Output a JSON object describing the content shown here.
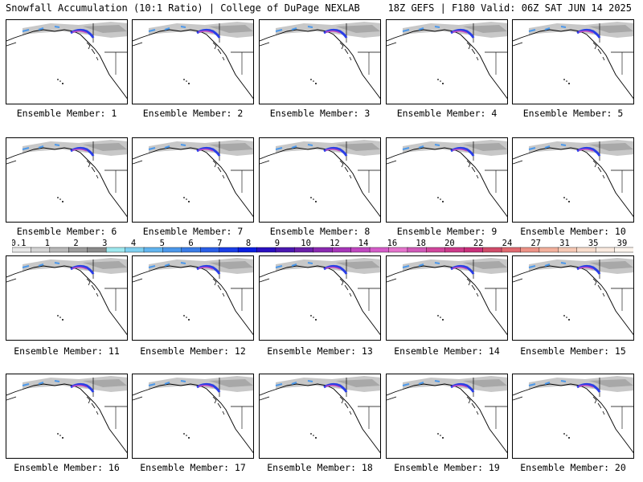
{
  "header": {
    "title_left": "Snowfall Accumulation (10:1 Ratio) | College of DuPage NEXLAB",
    "title_right": "18Z GEFS | F180 Valid: 06Z SAT JUN 14 2025"
  },
  "panels": [
    {
      "label": "Ensemble Member: 1"
    },
    {
      "label": "Ensemble Member: 2"
    },
    {
      "label": "Ensemble Member: 3"
    },
    {
      "label": "Ensemble Member: 4"
    },
    {
      "label": "Ensemble Member: 5"
    },
    {
      "label": "Ensemble Member: 6"
    },
    {
      "label": "Ensemble Member: 7"
    },
    {
      "label": "Ensemble Member: 8"
    },
    {
      "label": "Ensemble Member: 9"
    },
    {
      "label": "Ensemble Member: 10"
    },
    {
      "label": "Ensemble Member: 11"
    },
    {
      "label": "Ensemble Member: 12"
    },
    {
      "label": "Ensemble Member: 13"
    },
    {
      "label": "Ensemble Member: 14"
    },
    {
      "label": "Ensemble Member: 15"
    },
    {
      "label": "Ensemble Member: 16"
    },
    {
      "label": "Ensemble Member: 17"
    },
    {
      "label": "Ensemble Member: 18"
    },
    {
      "label": "Ensemble Member: 19"
    },
    {
      "label": "Ensemble Member: 20"
    }
  ],
  "colorbar": {
    "labels": [
      "0.1",
      "1",
      "2",
      "3",
      "4",
      "5",
      "6",
      "7",
      "8",
      "9",
      "10",
      "12",
      "14",
      "16",
      "18",
      "20",
      "22",
      "24",
      "27",
      "31",
      "35",
      "39"
    ],
    "colors": [
      "#e8e8e8",
      "#d4d4d4",
      "#b8b8b8",
      "#9c9c9c",
      "#8a8a8a",
      "#9ee8ee",
      "#7fd0f0",
      "#62b4ee",
      "#4c98ea",
      "#3a7ce6",
      "#2a5ee6",
      "#1a3ee6",
      "#0a1ee0",
      "#2a10c0",
      "#4a18b0",
      "#6a20a8",
      "#8a2ab0",
      "#a636b8",
      "#c048c0",
      "#d45cc8",
      "#e474cc",
      "#d05ab8",
      "#d0469c",
      "#cc3a8a",
      "#c8307a",
      "#d04c6a",
      "#e06a70",
      "#ec9286",
      "#f2b09c",
      "#f6c8b4",
      "#f8dccc",
      "#faeadf",
      "#fdf5ee"
    ]
  }
}
